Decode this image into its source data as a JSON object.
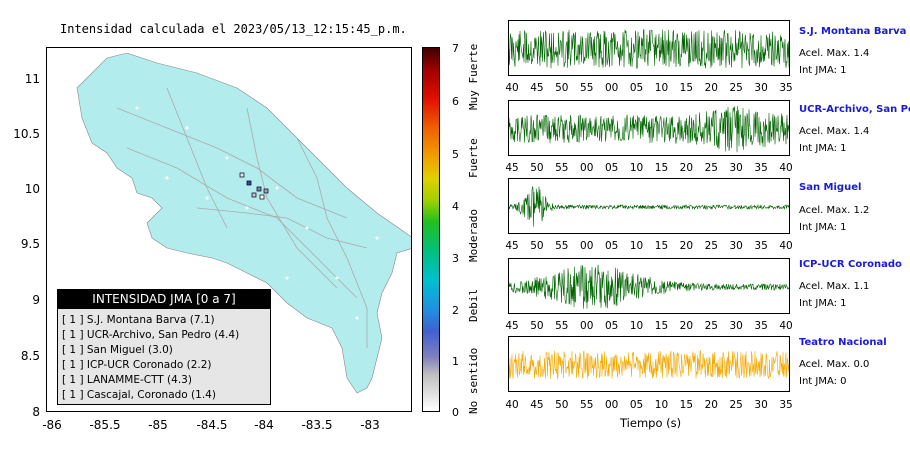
{
  "map": {
    "title": "Intensidad calculada el 2023/05/13_12:15:45_p.m.",
    "y_ticks": [
      "11",
      "10.5",
      "10",
      "9.5",
      "9",
      "8.5",
      "8"
    ],
    "x_ticks": [
      "-86",
      "-85.5",
      "-85",
      "-84.5",
      "-84",
      "-83.5",
      "-83"
    ],
    "land_color": "#b2ecec",
    "legend": {
      "header": "INTENSIDAD JMA [0 a 7]",
      "items": [
        "[ 1 ]  S.J. Montana Barva (7.1)",
        "[ 1 ]  UCR-Archivo, San Pedro (4.4)",
        "[ 1 ]  San Miguel (3.0)",
        "[ 1 ]  ICP-UCR Coronado (2.2)",
        "[ 1 ]  LANAMME-CTT (4.3)",
        "[ 1 ]  Cascajal, Coronado (1.4)"
      ]
    }
  },
  "colorbar": {
    "ticks": [
      "7",
      "6",
      "5",
      "4",
      "3",
      "2",
      "1",
      "0"
    ],
    "labels": [
      "Muy Fuerte",
      "Fuerte",
      "Moderado",
      "Debil",
      "No sentido"
    ]
  },
  "stations": [
    {
      "name": "S.J. Montana Barva",
      "acel": "Acel. Max. 1.4",
      "int": "Int JMA: 1",
      "color": "#006400",
      "ticks": [
        "40",
        "45",
        "50",
        "55",
        "00",
        "05",
        "10",
        "15",
        "20",
        "25",
        "30",
        "35"
      ]
    },
    {
      "name": "UCR-Archivo, San Pedro",
      "acel": "Acel. Max. 1.4",
      "int": "Int JMA: 1",
      "color": "#006400",
      "ticks": [
        "45",
        "50",
        "55",
        "00",
        "05",
        "10",
        "15",
        "20",
        "25",
        "30",
        "35",
        "40"
      ]
    },
    {
      "name": "San Miguel",
      "acel": "Acel. Max. 1.2",
      "int": "Int JMA: 1",
      "color": "#006400",
      "ticks": [
        "45",
        "50",
        "55",
        "00",
        "05",
        "10",
        "15",
        "20",
        "25",
        "30",
        "35",
        "40"
      ]
    },
    {
      "name": "ICP-UCR Coronado",
      "acel": "Acel. Max. 1.1",
      "int": "Int JMA: 1",
      "color": "#006400",
      "ticks": [
        "45",
        "50",
        "55",
        "00",
        "05",
        "10",
        "15",
        "20",
        "25",
        "30",
        "35",
        "40"
      ]
    },
    {
      "name": "Teatro Nacional",
      "acel": "Acel. Max. 0.0",
      "int": "Int JMA: 0",
      "color": "#f5a800",
      "ticks": [
        "40",
        "45",
        "50",
        "55",
        "00",
        "05",
        "10",
        "15",
        "20",
        "25",
        "30",
        "35"
      ]
    }
  ],
  "time_axis_label": "Tiempo (s)"
}
